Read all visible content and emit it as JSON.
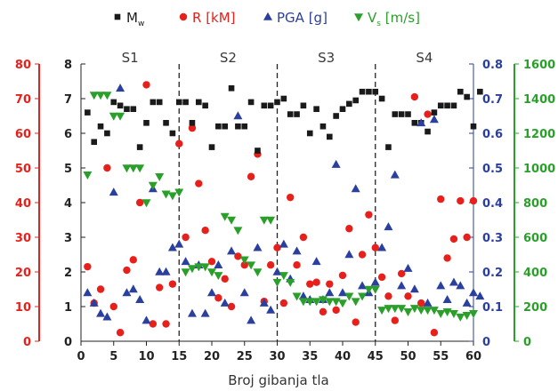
{
  "chart_data": {
    "type": "scatter",
    "xlabel": "Broj gibanja tla",
    "xlim": [
      0,
      60
    ],
    "x_ticks": [
      0,
      5,
      10,
      15,
      20,
      25,
      30,
      35,
      40,
      45,
      50,
      55,
      60
    ],
    "grid": false,
    "legend_position": "top",
    "segments": [
      {
        "label": "S1",
        "x_center": 7.5
      },
      {
        "label": "S2",
        "x_center": 22.5
      },
      {
        "label": "S3",
        "x_center": 37.5
      },
      {
        "label": "S4",
        "x_center": 52.5
      }
    ],
    "segment_boundaries": [
      15,
      30,
      45
    ],
    "axes": {
      "outer_left": {
        "color": "#e8201c",
        "ylim": [
          0,
          80
        ],
        "ticks": [
          0,
          10,
          20,
          30,
          40,
          50,
          60,
          70,
          80
        ]
      },
      "inner_left": {
        "color": "#222222",
        "ylim": [
          0,
          8
        ],
        "ticks": [
          0,
          1,
          2,
          3,
          4,
          5,
          6,
          7,
          8
        ]
      },
      "inner_right": {
        "color": "#2a3f9e",
        "ylim": [
          0,
          0.8
        ],
        "ticks": [
          "0",
          "0.1",
          "0.2",
          "0.3",
          "0.4",
          "0.5",
          "0.6",
          "0.7",
          "0.8"
        ]
      },
      "outer_right": {
        "color": "#2aa02a",
        "ylim": [
          0,
          1600
        ],
        "ticks": [
          0,
          200,
          400,
          600,
          800,
          1000,
          1200,
          1400,
          1600
        ]
      }
    },
    "series": [
      {
        "name": "M",
        "name_sub": "w",
        "axis": "inner_left",
        "marker": "square",
        "color": "#1a1a1a",
        "points": [
          [
            1,
            6.6
          ],
          [
            2,
            5.75
          ],
          [
            3,
            6.2
          ],
          [
            4,
            6.0
          ],
          [
            5,
            6.9
          ],
          [
            6,
            6.8
          ],
          [
            7,
            6.7
          ],
          [
            8,
            6.7
          ],
          [
            9,
            5.6
          ],
          [
            10,
            6.3
          ],
          [
            11,
            6.9
          ],
          [
            12,
            6.9
          ],
          [
            13,
            6.3
          ],
          [
            14,
            6.0
          ],
          [
            15,
            6.9
          ],
          [
            16,
            6.9
          ],
          [
            17,
            6.3
          ],
          [
            18,
            6.9
          ],
          [
            19,
            6.8
          ],
          [
            20,
            5.6
          ],
          [
            21,
            6.2
          ],
          [
            22,
            6.2
          ],
          [
            23,
            7.3
          ],
          [
            24,
            6.2
          ],
          [
            25,
            6.2
          ],
          [
            26,
            6.9
          ],
          [
            27,
            5.5
          ],
          [
            28,
            6.8
          ],
          [
            29,
            6.8
          ],
          [
            30,
            6.9
          ],
          [
            31,
            7.0
          ],
          [
            32,
            6.55
          ],
          [
            33,
            6.55
          ],
          [
            34,
            6.8
          ],
          [
            35,
            6.0
          ],
          [
            36,
            6.7
          ],
          [
            37,
            6.2
          ],
          [
            38,
            5.9
          ],
          [
            39,
            6.5
          ],
          [
            40,
            6.7
          ],
          [
            41,
            6.85
          ],
          [
            42,
            6.95
          ],
          [
            43,
            7.2
          ],
          [
            44,
            7.2
          ],
          [
            45,
            7.2
          ],
          [
            46,
            7.0
          ],
          [
            47,
            5.6
          ],
          [
            48,
            6.55
          ],
          [
            49,
            6.55
          ],
          [
            50,
            6.55
          ],
          [
            51,
            6.3
          ],
          [
            52,
            6.3
          ],
          [
            53,
            6.05
          ],
          [
            54,
            6.6
          ],
          [
            55,
            6.8
          ],
          [
            56,
            6.8
          ],
          [
            57,
            6.8
          ],
          [
            58,
            7.2
          ],
          [
            59,
            7.05
          ],
          [
            60,
            6.2
          ],
          [
            61,
            7.2
          ]
        ]
      },
      {
        "name": "R [kM]",
        "axis": "outer_left",
        "marker": "circle",
        "color": "#e8201c",
        "points": [
          [
            1,
            21.5
          ],
          [
            2,
            11
          ],
          [
            3,
            15
          ],
          [
            4,
            50
          ],
          [
            5,
            10
          ],
          [
            6,
            2.5
          ],
          [
            7,
            20.5
          ],
          [
            8,
            23.5
          ],
          [
            9,
            40
          ],
          [
            10,
            74
          ],
          [
            11,
            5
          ],
          [
            12,
            15.5
          ],
          [
            13,
            5
          ],
          [
            14,
            16.5
          ],
          [
            15,
            57
          ],
          [
            16,
            30
          ],
          [
            17,
            61.5
          ],
          [
            18,
            45.5
          ],
          [
            19,
            32
          ],
          [
            20,
            23
          ],
          [
            21,
            12.5
          ],
          [
            22,
            18
          ],
          [
            23,
            10
          ],
          [
            24,
            24.5
          ],
          [
            25,
            22
          ],
          [
            26,
            47.5
          ],
          [
            27,
            54
          ],
          [
            28,
            11.5
          ],
          [
            29,
            22
          ],
          [
            30,
            27
          ],
          [
            31,
            11
          ],
          [
            32,
            41.5
          ],
          [
            33,
            22
          ],
          [
            34,
            30
          ],
          [
            35,
            16.5
          ],
          [
            36,
            17
          ],
          [
            37,
            8.5
          ],
          [
            38,
            16.5
          ],
          [
            39,
            9
          ],
          [
            40,
            19
          ],
          [
            41,
            32.5
          ],
          [
            42,
            5.5
          ],
          [
            43,
            25
          ],
          [
            44,
            36.5
          ],
          [
            45,
            27
          ],
          [
            46,
            18.5
          ],
          [
            47,
            13
          ],
          [
            48,
            6
          ],
          [
            49,
            19.5
          ],
          [
            50,
            13
          ],
          [
            51,
            70.5
          ],
          [
            52,
            11
          ],
          [
            53,
            65.5
          ],
          [
            54,
            2.5
          ],
          [
            55,
            41
          ],
          [
            56,
            24
          ],
          [
            57,
            29.5
          ],
          [
            58,
            40.5
          ],
          [
            59,
            30
          ],
          [
            60,
            40.5
          ]
        ]
      },
      {
        "name": "PGA [g]",
        "axis": "inner_right",
        "marker": "triangle-up",
        "color": "#2a3f9e",
        "points": [
          [
            1,
            0.14
          ],
          [
            2,
            0.11
          ],
          [
            3,
            0.08
          ],
          [
            4,
            0.07
          ],
          [
            5,
            0.43
          ],
          [
            6,
            0.73
          ],
          [
            7,
            0.14
          ],
          [
            8,
            0.15
          ],
          [
            9,
            0.12
          ],
          [
            10,
            0.06
          ],
          [
            11,
            0.44
          ],
          [
            12,
            0.2
          ],
          [
            13,
            0.2
          ],
          [
            14,
            0.27
          ],
          [
            15,
            0.28
          ],
          [
            16,
            0.23
          ],
          [
            17,
            0.08
          ],
          [
            18,
            0.22
          ],
          [
            19,
            0.08
          ],
          [
            20,
            0.14
          ],
          [
            21,
            0.22
          ],
          [
            22,
            0.11
          ],
          [
            23,
            0.26
          ],
          [
            24,
            0.65
          ],
          [
            25,
            0.14
          ],
          [
            26,
            0.06
          ],
          [
            27,
            0.27
          ],
          [
            28,
            0.11
          ],
          [
            29,
            0.09
          ],
          [
            30,
            0.2
          ],
          [
            31,
            0.28
          ],
          [
            32,
            0.18
          ],
          [
            33,
            0.26
          ],
          [
            34,
            0.13
          ],
          [
            35,
            0.12
          ],
          [
            36,
            0.23
          ],
          [
            37,
            0.12
          ],
          [
            38,
            0.14
          ],
          [
            39,
            0.51
          ],
          [
            40,
            0.14
          ],
          [
            41,
            0.25
          ],
          [
            42,
            0.44
          ],
          [
            43,
            0.16
          ],
          [
            44,
            0.14
          ],
          [
            45,
            0.17
          ],
          [
            46,
            0.27
          ],
          [
            47,
            0.33
          ],
          [
            48,
            0.48
          ],
          [
            49,
            0.16
          ],
          [
            50,
            0.21
          ],
          [
            51,
            0.15
          ],
          [
            52,
            0.63
          ],
          [
            53,
            0.11
          ],
          [
            54,
            0.64
          ],
          [
            55,
            0.16
          ],
          [
            56,
            0.12
          ],
          [
            57,
            0.17
          ],
          [
            58,
            0.16
          ],
          [
            59,
            0.11
          ],
          [
            60,
            0.14
          ],
          [
            61,
            0.13
          ]
        ]
      },
      {
        "name": "V",
        "name_sub": "s",
        "name_suffix": " [m/s]",
        "axis": "outer_right",
        "marker": "triangle-down",
        "color": "#2aa02a",
        "points": [
          [
            1,
            960
          ],
          [
            2,
            1420
          ],
          [
            3,
            1420
          ],
          [
            4,
            1420
          ],
          [
            5,
            1300
          ],
          [
            6,
            1300
          ],
          [
            7,
            1000
          ],
          [
            8,
            1000
          ],
          [
            9,
            1000
          ],
          [
            10,
            800
          ],
          [
            11,
            900
          ],
          [
            12,
            950
          ],
          [
            13,
            850
          ],
          [
            14,
            840
          ],
          [
            15,
            860
          ],
          [
            16,
            400
          ],
          [
            17,
            420
          ],
          [
            18,
            430
          ],
          [
            19,
            430
          ],
          [
            20,
            400
          ],
          [
            21,
            380
          ],
          [
            22,
            720
          ],
          [
            23,
            700
          ],
          [
            24,
            640
          ],
          [
            25,
            470
          ],
          [
            26,
            440
          ],
          [
            27,
            400
          ],
          [
            28,
            700
          ],
          [
            29,
            700
          ],
          [
            30,
            340
          ],
          [
            31,
            380
          ],
          [
            32,
            340
          ],
          [
            33,
            260
          ],
          [
            34,
            230
          ],
          [
            35,
            230
          ],
          [
            36,
            230
          ],
          [
            37,
            240
          ],
          [
            38,
            230
          ],
          [
            39,
            230
          ],
          [
            40,
            220
          ],
          [
            41,
            260
          ],
          [
            42,
            230
          ],
          [
            43,
            260
          ],
          [
            44,
            300
          ],
          [
            45,
            300
          ],
          [
            46,
            180
          ],
          [
            47,
            190
          ],
          [
            48,
            190
          ],
          [
            49,
            190
          ],
          [
            50,
            170
          ],
          [
            51,
            190
          ],
          [
            52,
            180
          ],
          [
            53,
            180
          ],
          [
            54,
            180
          ],
          [
            55,
            160
          ],
          [
            56,
            170
          ],
          [
            57,
            160
          ],
          [
            58,
            140
          ],
          [
            59,
            150
          ],
          [
            60,
            160
          ]
        ]
      }
    ]
  }
}
